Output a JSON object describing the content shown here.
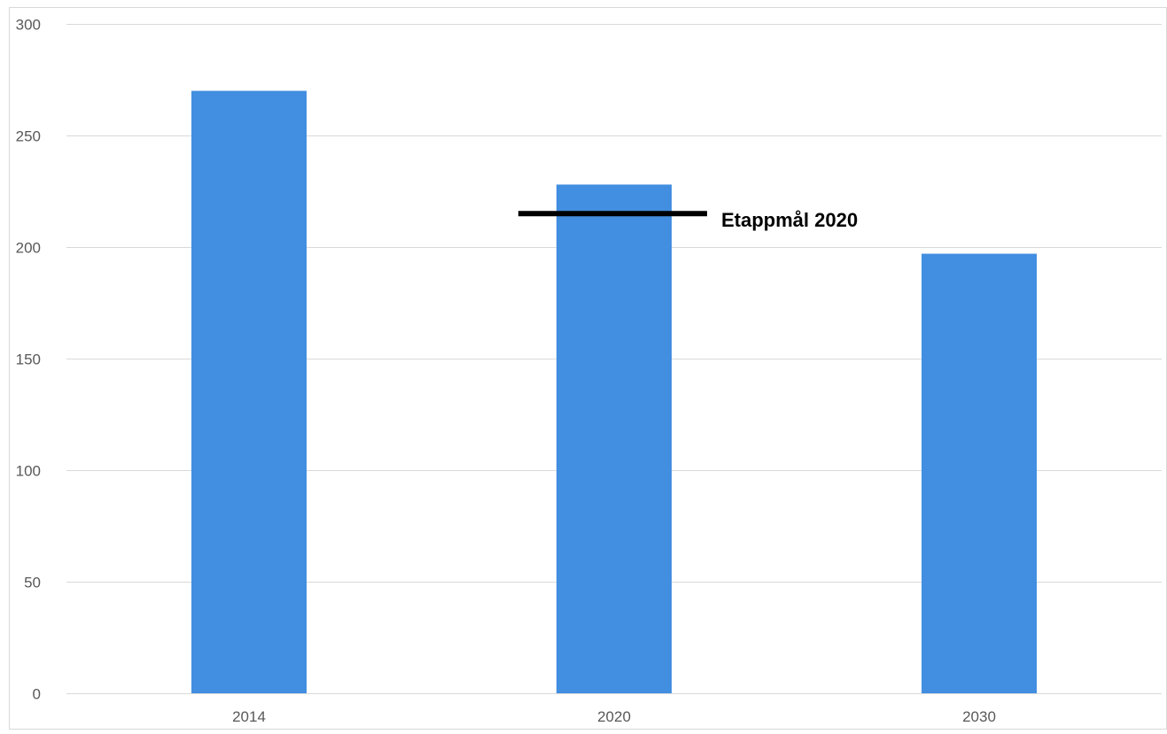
{
  "chart_data": {
    "type": "bar",
    "categories": [
      "2014",
      "2020",
      "2030"
    ],
    "values": [
      270,
      228,
      197
    ],
    "title": "",
    "xlabel": "",
    "ylabel": "",
    "ylim": [
      0,
      300
    ],
    "yticks": [
      0,
      50,
      100,
      150,
      200,
      250,
      300
    ],
    "grid": true,
    "legend": "none",
    "bar_color": "#428ee0",
    "annotations": [
      {
        "label": "Etappmål 2020",
        "type": "target-line",
        "value": 215,
        "category": "2020",
        "color": "#000000"
      }
    ]
  }
}
